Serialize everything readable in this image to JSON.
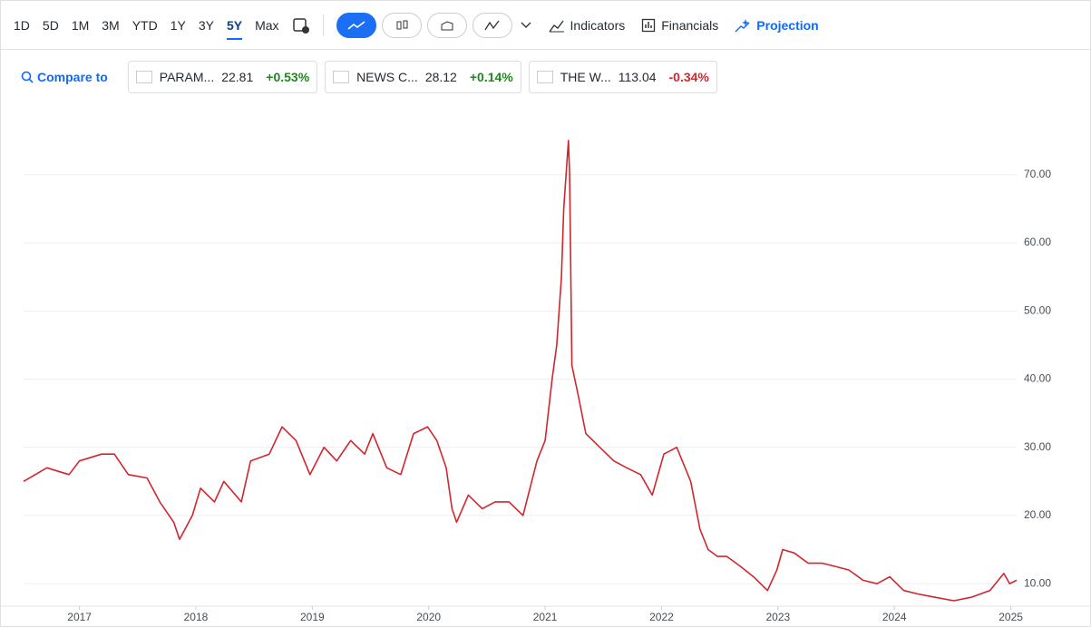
{
  "toolbar": {
    "ranges": [
      "1D",
      "5D",
      "1M",
      "3M",
      "YTD",
      "1Y",
      "3Y",
      "5Y",
      "Max"
    ],
    "active_range": 7,
    "tools": [
      "Indicators",
      "Financials",
      "Projection"
    ]
  },
  "compare": {
    "label": "Compare to",
    "chips": [
      {
        "name": "PARAM...",
        "price": "22.81",
        "change": "+0.53%",
        "color": "#1a8a1a"
      },
      {
        "name": "NEWS C...",
        "price": "28.12",
        "change": "+0.14%",
        "color": "#1a8a1a"
      },
      {
        "name": "THE W...",
        "price": "113.04",
        "change": "-0.34%",
        "color": "#d6262b"
      }
    ]
  },
  "chart_data": {
    "type": "line",
    "x": [
      2016.52,
      2016.72,
      2016.91,
      2017.0,
      2017.19,
      2017.3,
      2017.42,
      2017.58,
      2017.69,
      2017.81,
      2017.86,
      2017.97,
      2018.04,
      2018.16,
      2018.24,
      2018.39,
      2018.47,
      2018.63,
      2018.74,
      2018.86,
      2018.98,
      2019.1,
      2019.21,
      2019.33,
      2019.45,
      2019.52,
      2019.64,
      2019.76,
      2019.87,
      2019.99,
      2020.07,
      2020.15,
      2020.2,
      2020.24,
      2020.34,
      2020.46,
      2020.57,
      2020.69,
      2020.81,
      2020.93,
      2021.0,
      2021.06,
      2021.1,
      2021.14,
      2021.16,
      2021.2,
      2021.21,
      2021.23,
      2021.28,
      2021.35,
      2021.47,
      2021.59,
      2021.7,
      2021.82,
      2021.92,
      2022.02,
      2022.13,
      2022.25,
      2022.33,
      2022.4,
      2022.48,
      2022.56,
      2022.68,
      2022.79,
      2022.91,
      2022.99,
      2023.04,
      2023.14,
      2023.26,
      2023.38,
      2023.5,
      2023.61,
      2023.73,
      2023.85,
      2023.96,
      2024.08,
      2024.2,
      2024.35,
      2024.51,
      2024.66,
      2024.82,
      2024.94,
      2024.99,
      2025.05
    ],
    "series": [
      {
        "color": "#d0262d",
        "values": [
          25,
          27,
          26,
          28,
          29,
          29,
          26,
          25.5,
          22,
          19,
          16.5,
          20,
          24,
          22,
          25,
          22,
          28,
          29,
          33,
          31,
          26,
          30,
          28,
          31,
          29,
          32,
          27,
          26,
          32,
          33,
          31,
          27,
          21,
          19,
          23,
          21,
          22,
          22,
          20,
          28,
          31,
          40,
          45,
          55,
          65,
          75,
          70,
          42,
          38,
          32,
          30,
          28,
          27,
          26,
          23,
          29,
          30,
          25,
          18,
          15,
          14,
          14,
          12.5,
          11,
          9,
          12,
          15,
          14.5,
          13,
          13,
          12.5,
          12,
          10.5,
          10,
          11,
          9,
          8.5,
          8,
          7.5,
          8,
          9,
          11.5,
          10,
          10.5
        ]
      }
    ],
    "xlim": [
      2016.52,
      2025.05
    ],
    "ylim": [
      6.7,
      78.2
    ],
    "xticks": [
      2017,
      2018,
      2019,
      2020,
      2021,
      2022,
      2023,
      2024,
      2025
    ],
    "yticks": [
      {
        "value": 10,
        "label": "10.00"
      },
      {
        "value": 20,
        "label": "20.00"
      },
      {
        "value": 30,
        "label": "30.00"
      },
      {
        "value": 40,
        "label": "40.00"
      },
      {
        "value": 50,
        "label": "50.00"
      },
      {
        "value": 60,
        "label": "60.00"
      },
      {
        "value": 70,
        "label": "70.00"
      }
    ],
    "grid": true
  }
}
